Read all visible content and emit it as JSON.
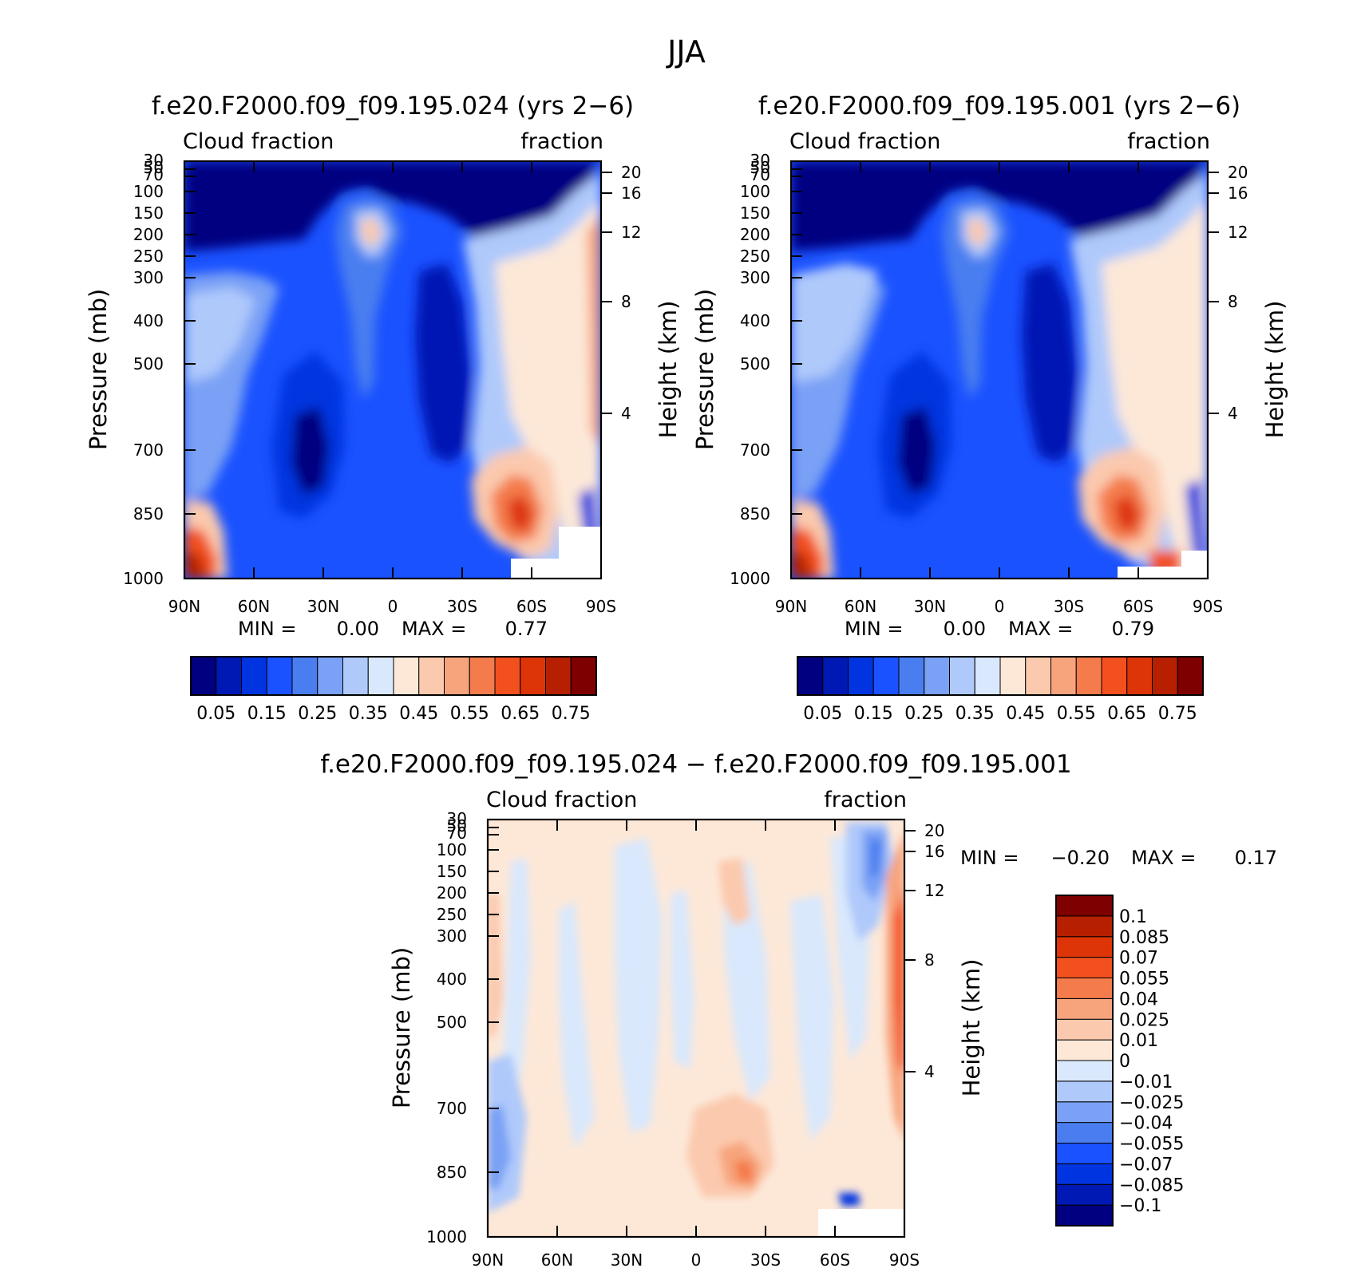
{
  "figure": {
    "title": "JJA"
  },
  "common": {
    "left_string": "Cloud fraction",
    "right_string": "fraction",
    "y_label": "Pressure (mb)",
    "y2_label": "Height (km)",
    "min_label": "MIN =",
    "max_label": "MAX =",
    "pressure_ticks": [
      "30",
      "50",
      "70",
      "100",
      "150",
      "200",
      "250",
      "300",
      "400",
      "500",
      "700",
      "850",
      "1000"
    ],
    "height_ticks": [
      "20",
      "16",
      "12",
      "8",
      "4"
    ],
    "lat_ticks": [
      "90N",
      "60N",
      "30N",
      "0",
      "30S",
      "60S",
      "90S"
    ]
  },
  "colors": {
    "abs_levels": [
      "#000080",
      "#0019b4",
      "#0034e0",
      "#1a52ff",
      "#4a7ef0",
      "#7aa1f5",
      "#afc9fb",
      "#d9e8fc",
      "#fde8d8",
      "#fbc9ad",
      "#f7a47d",
      "#f47c4c",
      "#f2501e",
      "#dd3408",
      "#b62000",
      "#7f0000"
    ],
    "diff_levels": [
      "#000080",
      "#0019b4",
      "#0034e0",
      "#1a52ff",
      "#4a7ef0",
      "#7aa1f5",
      "#afc9fb",
      "#d9e8fc",
      "#fde8d8",
      "#fbc9ad",
      "#f7a47d",
      "#f47c4c",
      "#f2501e",
      "#dd3408",
      "#b62000",
      "#7f0000"
    ]
  },
  "panels": [
    {
      "title": "f.e20.F2000.f09_f09.195.024 (yrs 2−6)",
      "min": "0.00",
      "max": "0.77"
    },
    {
      "title": "f.e20.F2000.f09_f09.195.001 (yrs 2−6)",
      "min": "0.00",
      "max": "0.79"
    },
    {
      "title": "f.e20.F2000.f09_f09.195.024 − f.e20.F2000.f09_f09.195.001",
      "min": "−0.20",
      "max": "0.17"
    }
  ],
  "colorbars": {
    "abs_labels": [
      "0.05",
      "0.15",
      "0.25",
      "0.35",
      "0.45",
      "0.55",
      "0.65",
      "0.75"
    ],
    "diff_labels": [
      "0.1",
      "0.085",
      "0.07",
      "0.055",
      "0.04",
      "0.025",
      "0.01",
      "0",
      "−0.01",
      "−0.025",
      "−0.04",
      "−0.055",
      "−0.07",
      "−0.085",
      "−0.1"
    ]
  },
  "chart_data": [
    {
      "type": "heatmap",
      "title": "f.e20.F2000.f09_f09.195.024 (yrs 2−6)",
      "xlabel": "",
      "ylabel": "Pressure (mb)",
      "y2label": "Height (km)",
      "x_range": [
        "90N",
        "90S"
      ],
      "y_range_mb": [
        1000,
        30
      ],
      "y_scale": "log",
      "contour_levels": [
        0.05,
        0.1,
        0.15,
        0.2,
        0.25,
        0.3,
        0.35,
        0.4,
        0.45,
        0.5,
        0.55,
        0.6,
        0.65,
        0.7,
        0.75
      ],
      "min": 0.0,
      "max": 0.77,
      "features": [
        {
          "lat": 75,
          "p": 1000,
          "value": 0.7
        },
        {
          "lat": 12,
          "p": 200,
          "value": 0.45
        },
        {
          "lat": -58,
          "p": 850,
          "value": 0.65
        },
        {
          "lat": 25,
          "p": 700,
          "value": 0.02
        },
        {
          "lat": -22,
          "p": 400,
          "value": 0.02
        },
        {
          "lat": 0,
          "p": 60,
          "value": 0.02
        },
        {
          "lat": -88,
          "p": 600,
          "value": 0.6
        }
      ]
    },
    {
      "type": "heatmap",
      "title": "f.e20.F2000.f09_f09.195.001 (yrs 2−6)",
      "xlabel": "",
      "ylabel": "Pressure (mb)",
      "y2label": "Height (km)",
      "x_range": [
        "90N",
        "90S"
      ],
      "y_range_mb": [
        1000,
        30
      ],
      "y_scale": "log",
      "contour_levels": [
        0.05,
        0.1,
        0.15,
        0.2,
        0.25,
        0.3,
        0.35,
        0.4,
        0.45,
        0.5,
        0.55,
        0.6,
        0.65,
        0.7,
        0.75
      ],
      "min": 0.0,
      "max": 0.79,
      "features": [
        {
          "lat": 75,
          "p": 1000,
          "value": 0.7
        },
        {
          "lat": 12,
          "p": 200,
          "value": 0.45
        },
        {
          "lat": -58,
          "p": 850,
          "value": 0.65
        },
        {
          "lat": 25,
          "p": 700,
          "value": 0.02
        },
        {
          "lat": -22,
          "p": 400,
          "value": 0.02
        },
        {
          "lat": 0,
          "p": 60,
          "value": 0.02
        }
      ]
    },
    {
      "type": "heatmap",
      "title": "f.e20.F2000.f09_f09.195.024 − f.e20.F2000.f09_f09.195.001",
      "xlabel": "",
      "ylabel": "Pressure (mb)",
      "y2label": "Height (km)",
      "x_range": [
        "90N",
        "90S"
      ],
      "y_range_mb": [
        1000,
        30
      ],
      "y_scale": "log",
      "contour_levels": [
        -0.1,
        -0.085,
        -0.07,
        -0.055,
        -0.04,
        -0.025,
        -0.01,
        0,
        0.01,
        0.025,
        0.04,
        0.055,
        0.07,
        0.085,
        0.1
      ],
      "min": -0.2,
      "max": 0.17,
      "features": [
        {
          "lat": -30,
          "p": 850,
          "value": 0.055
        },
        {
          "lat": -87,
          "p": 450,
          "value": 0.07
        },
        {
          "lat": -77,
          "p": 120,
          "value": -0.055
        },
        {
          "lat": -70,
          "p": 970,
          "value": -0.1
        },
        {
          "lat": 65,
          "p": 800,
          "value": -0.025
        }
      ]
    }
  ]
}
